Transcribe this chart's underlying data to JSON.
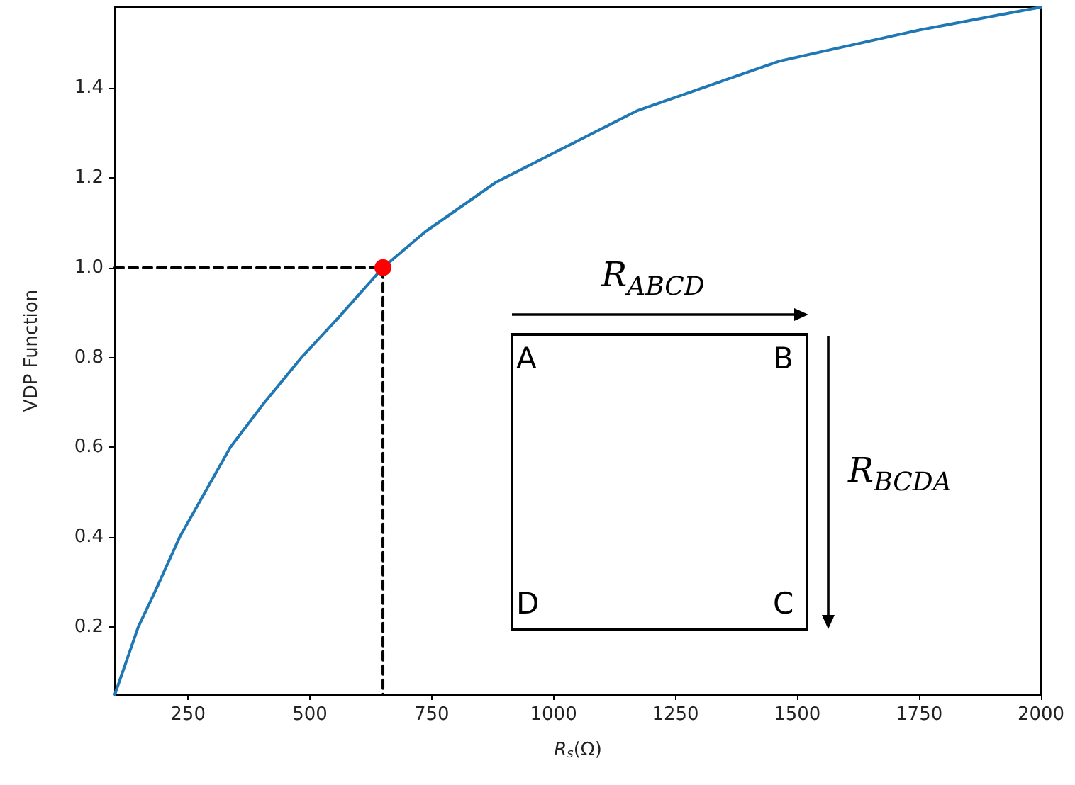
{
  "chart_data": {
    "type": "line",
    "xlabel": "R$_{s}$(Ω)",
    "ylabel": "VDP Function",
    "xlim": [
      100,
      2000
    ],
    "ylim": [
      0.05,
      1.58
    ],
    "xticks": [
      250,
      500,
      750,
      1000,
      1250,
      1500,
      1750,
      2000
    ],
    "yticks": [
      0.2,
      0.4,
      0.6,
      0.8,
      {
        "value": 1.0,
        "label": "1.0"
      },
      1.2,
      1.4
    ],
    "grid": false,
    "series": [
      {
        "type": "line",
        "color": "#1f77b4",
        "line_style": "solid",
        "marker": "none",
        "x": [
          100,
          148,
          183,
          233,
          337,
          407,
          483,
          560,
          650,
          737,
          882,
          1173,
          1464,
          1755,
          2000
        ],
        "values": [
          0.05,
          0.2,
          0.28,
          0.4,
          0.6,
          0.7,
          0.8,
          0.89,
          1.0,
          1.08,
          1.19,
          1.35,
          1.46,
          1.53,
          1.58
        ]
      },
      {
        "type": "line",
        "color": "#000000",
        "line_style": "dashed",
        "marker": "none",
        "x": [
          100,
          650,
          650
        ],
        "values": [
          1.0,
          1.0,
          0.05
        ]
      },
      {
        "type": "scatter",
        "color": "#ff0000",
        "marker": "circle",
        "x": [
          650
        ],
        "values": [
          1.0
        ]
      }
    ],
    "annotations": [
      "R$_{ABCD}$",
      "R$_{BCDA}$",
      "A",
      "B",
      "C",
      "D"
    ]
  }
}
